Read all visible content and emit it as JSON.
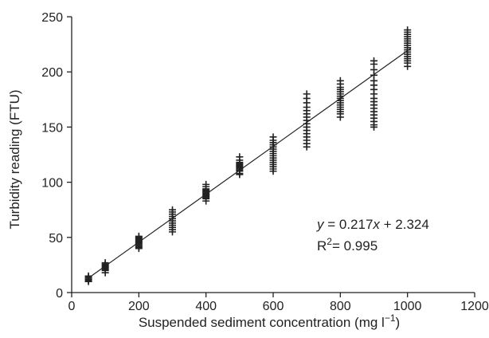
{
  "chart_data": {
    "type": "scatter",
    "title": "",
    "xlabel": "Suspended sediment concentration (mg l",
    "xlabel_sup": "−1",
    "xlabel_end": ")",
    "ylabel": "Turbidity reading (FTU)",
    "xlim": [
      0,
      1200
    ],
    "ylim": [
      0,
      250
    ],
    "x_ticks": [
      0,
      200,
      400,
      600,
      800,
      1000,
      1200
    ],
    "y_ticks": [
      0,
      50,
      100,
      150,
      200,
      250
    ],
    "grid": false,
    "marker": "+",
    "marker_color": "#222222",
    "points": [
      {
        "x": 50,
        "y": [
          10,
          11,
          12,
          13,
          14,
          15
        ]
      },
      {
        "x": 100,
        "y": [
          18,
          20,
          21,
          22,
          23,
          24,
          25,
          26,
          27
        ]
      },
      {
        "x": 200,
        "y": [
          40,
          41,
          42,
          43,
          44,
          45,
          46,
          47,
          48,
          49,
          50,
          51
        ]
      },
      {
        "x": 300,
        "y": [
          55,
          57,
          59,
          61,
          63,
          65,
          67,
          69,
          71,
          73,
          75
        ]
      },
      {
        "x": 400,
        "y": [
          83,
          85,
          86,
          87,
          88,
          89,
          90,
          91,
          92,
          93,
          94,
          96,
          98
        ]
      },
      {
        "x": 500,
        "y": [
          107,
          108,
          110,
          111,
          112,
          113,
          114,
          115,
          116,
          117,
          118,
          120,
          123
        ]
      },
      {
        "x": 600,
        "y": [
          110,
          112,
          114,
          116,
          118,
          120,
          122,
          124,
          126,
          128,
          130,
          132,
          134,
          136,
          138,
          141
        ]
      },
      {
        "x": 700,
        "y": [
          132,
          135,
          138,
          141,
          144,
          147,
          150,
          153,
          156,
          159,
          162,
          165,
          168,
          172,
          176,
          180
        ]
      },
      {
        "x": 800,
        "y": [
          159,
          162,
          164,
          166,
          168,
          170,
          172,
          174,
          176,
          178,
          180,
          182,
          184,
          186,
          189,
          192
        ]
      },
      {
        "x": 900,
        "y": [
          150,
          152,
          155,
          158,
          161,
          164,
          167,
          170,
          173,
          176,
          180,
          184,
          188,
          192,
          197,
          202,
          207,
          210
        ]
      },
      {
        "x": 1000,
        "y": [
          205,
          208,
          210,
          212,
          214,
          216,
          218,
          220,
          222,
          224,
          226,
          228,
          230,
          232,
          234,
          236,
          238
        ]
      }
    ],
    "fit_line": {
      "slope": 0.217,
      "intercept": 2.324,
      "x_range": [
        50,
        1010
      ]
    },
    "annotations": {
      "equation_var": "y",
      "equation_mid": " = 0.217",
      "equation_var2": "x",
      "equation_end": " + 2.324",
      "r2_base": "R",
      "r2_sup": "2",
      "r2_value": "= 0.995"
    }
  }
}
